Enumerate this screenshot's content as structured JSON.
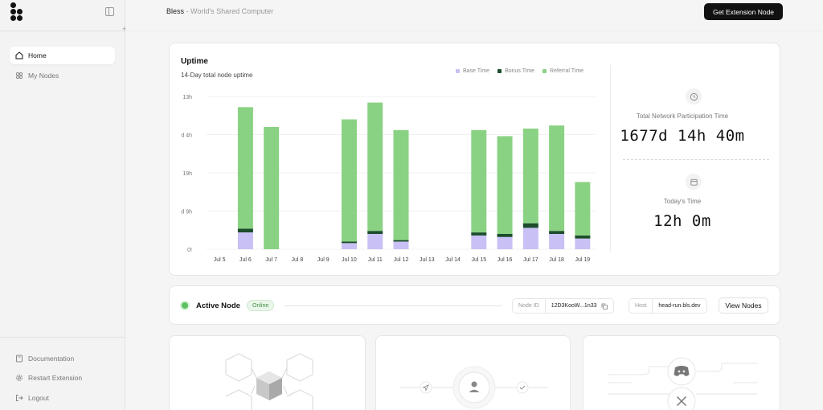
{
  "sidebar": {
    "items": [
      {
        "label": "Home",
        "icon": "home-icon",
        "active": true
      },
      {
        "label": "My Nodes",
        "icon": "nodes-icon",
        "active": false
      }
    ],
    "bottom_items": [
      {
        "label": "Documentation",
        "icon": "book-icon"
      },
      {
        "label": "Restart Extension",
        "icon": "gear-icon"
      },
      {
        "label": "Logout",
        "icon": "logout-icon"
      }
    ]
  },
  "header": {
    "brand": "Bless",
    "subtitle": " - World's Shared Computer",
    "cta_label": "Get Extension Node"
  },
  "uptime": {
    "title": "Uptime",
    "subtitle": "14-Day total node uptime",
    "legend": [
      {
        "label": "Base Time",
        "color": "#c9c0f5"
      },
      {
        "label": "Bonus Time",
        "color": "#1c4d2c"
      },
      {
        "label": "Referral Time",
        "color": "#8ad283"
      }
    ]
  },
  "chart_data": {
    "type": "bar",
    "stacked": true,
    "categories": [
      "Jul 5",
      "Jul 6",
      "Jul 7",
      "Jul 8",
      "Jul 9",
      "Jul 10",
      "Jul 11",
      "Jul 12",
      "Jul 13",
      "Jul 14",
      "Jul 15",
      "Jul 16",
      "Jul 17",
      "Jul 18",
      "Jul 19"
    ],
    "ytick_labels": [
      "13h",
      "d 4h",
      "19h",
      "d 9h",
      "0!"
    ],
    "series": [
      {
        "name": "Base Time",
        "values": [
          0,
          0.11,
          0,
          0,
          0,
          0.04,
          0.1,
          0.05,
          0,
          0,
          0.09,
          0.08,
          0.14,
          0.1,
          0.07
        ]
      },
      {
        "name": "Bonus Time",
        "values": [
          0,
          0.025,
          0,
          0,
          0,
          0.01,
          0.02,
          0.01,
          0,
          0,
          0.02,
          0.02,
          0.03,
          0.02,
          0.02
        ]
      },
      {
        "name": "Referral Time",
        "values": [
          0,
          0.795,
          0.8,
          0,
          0,
          0.8,
          0.84,
          0.72,
          0,
          0,
          0.67,
          0.64,
          0.62,
          0.69,
          0.35
        ]
      }
    ],
    "ylim": [
      0,
      1
    ]
  },
  "stats": {
    "total_label": "Total Network Participation Time",
    "total_value": "1677d 14h 40m",
    "today_label": "Today's Time",
    "today_value": "12h 0m"
  },
  "node": {
    "title": "Active Node",
    "status": "Online",
    "node_id_label": "Node ID",
    "node_id_value": "12D3KooW...1n33",
    "host_label": "Host",
    "host_value": "head-run.bls.dev",
    "view_nodes_label": "View Nodes"
  }
}
